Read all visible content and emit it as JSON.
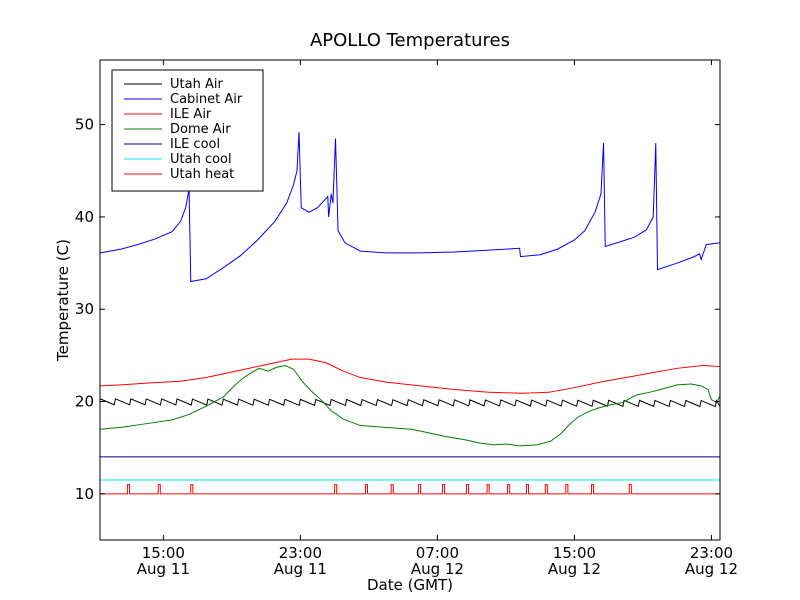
{
  "chart_data": {
    "type": "line",
    "title": "APOLLO Temperatures",
    "xlabel": "Date (GMT)",
    "ylabel": "Temperature (C)",
    "x_units": "hours since Aug 11 00:00 GMT",
    "xlim": [
      11.3,
      47.5
    ],
    "ylim": [
      5,
      57
    ],
    "yticks": [
      10,
      20,
      30,
      40,
      50
    ],
    "xticks": [
      {
        "x": 15,
        "line1": "15:00",
        "line2": "Aug 11"
      },
      {
        "x": 23,
        "line1": "23:00",
        "line2": "Aug 11"
      },
      {
        "x": 31,
        "line1": "07:00",
        "line2": "Aug 12"
      },
      {
        "x": 39,
        "line1": "15:00",
        "line2": "Aug 12"
      },
      {
        "x": 47,
        "line1": "23:00",
        "line2": "Aug 12"
      }
    ],
    "grid": false,
    "legend_position": "top-left",
    "series": [
      {
        "name": "Utah Air",
        "color": "#000000",
        "points": [
          [
            11.3,
            19.8
          ],
          [
            47.5,
            19.6
          ]
        ],
        "sawtooth": {
          "start": 11.3,
          "period": 0.9,
          "amplitude": 0.5,
          "spikes": []
        }
      },
      {
        "name": "Cabinet Air",
        "color": "#0000ff",
        "points": [
          [
            11.3,
            36.1
          ],
          [
            12.5,
            36.5
          ],
          [
            13.5,
            37.0
          ],
          [
            14.5,
            37.6
          ],
          [
            15.5,
            38.4
          ],
          [
            16,
            39.5
          ],
          [
            16.3,
            41
          ],
          [
            16.5,
            43
          ],
          [
            16.6,
            33
          ],
          [
            17.5,
            33.3
          ],
          [
            18.5,
            34.5
          ],
          [
            19.5,
            35.8
          ],
          [
            20.5,
            37.5
          ],
          [
            21.5,
            39.5
          ],
          [
            22.2,
            41.5
          ],
          [
            22.6,
            43.5
          ],
          [
            22.8,
            45
          ],
          [
            22.92,
            49.2
          ],
          [
            23.05,
            41
          ],
          [
            23.5,
            40.5
          ],
          [
            24,
            41
          ],
          [
            24.4,
            41.8
          ],
          [
            24.6,
            42.2
          ],
          [
            24.65,
            40.0
          ],
          [
            24.8,
            42.5
          ],
          [
            24.9,
            41.5
          ],
          [
            25.05,
            48.5
          ],
          [
            25.2,
            38.5
          ],
          [
            25.6,
            37.2
          ],
          [
            26.5,
            36.3
          ],
          [
            28,
            36.1
          ],
          [
            30,
            36.1
          ],
          [
            32,
            36.2
          ],
          [
            34,
            36.4
          ],
          [
            35.8,
            36.6
          ],
          [
            35.85,
            35.7
          ],
          [
            37,
            35.9
          ],
          [
            38,
            36.5
          ],
          [
            39,
            37.5
          ],
          [
            39.6,
            38.5
          ],
          [
            40.2,
            40.5
          ],
          [
            40.55,
            42.5
          ],
          [
            40.7,
            48.0
          ],
          [
            40.8,
            36.8
          ],
          [
            41.5,
            37.2
          ],
          [
            42.5,
            37.8
          ],
          [
            43.2,
            38.6
          ],
          [
            43.6,
            40
          ],
          [
            43.75,
            48.0
          ],
          [
            43.85,
            34.3
          ],
          [
            45,
            35
          ],
          [
            46,
            35.7
          ],
          [
            46.3,
            36
          ],
          [
            46.4,
            35.4
          ],
          [
            46.7,
            37.0
          ],
          [
            47.5,
            37.2
          ]
        ]
      },
      {
        "name": "ILE Air",
        "color": "#ff0000",
        "points": [
          [
            11.3,
            21.7
          ],
          [
            12.5,
            21.8
          ],
          [
            14,
            22
          ],
          [
            16,
            22.2
          ],
          [
            17.5,
            22.6
          ],
          [
            19,
            23.2
          ],
          [
            20.5,
            23.8
          ],
          [
            21.5,
            24.2
          ],
          [
            22.5,
            24.6
          ],
          [
            23.5,
            24.6
          ],
          [
            24.5,
            24.2
          ],
          [
            25.5,
            23.3
          ],
          [
            26.5,
            22.6
          ],
          [
            28,
            22.1
          ],
          [
            30,
            21.7
          ],
          [
            32,
            21.3
          ],
          [
            34,
            21
          ],
          [
            36,
            20.9
          ],
          [
            37.5,
            21
          ],
          [
            39,
            21.5
          ],
          [
            40.5,
            22.1
          ],
          [
            42,
            22.6
          ],
          [
            43.5,
            23.1
          ],
          [
            45,
            23.6
          ],
          [
            46.5,
            23.9
          ],
          [
            47.5,
            23.8
          ]
        ]
      },
      {
        "name": "Dome Air",
        "color": "#008000",
        "points": [
          [
            11.3,
            17
          ],
          [
            12.5,
            17.2
          ],
          [
            14,
            17.6
          ],
          [
            15.5,
            18
          ],
          [
            16.5,
            18.6
          ],
          [
            17.5,
            19.5
          ],
          [
            18.5,
            20.5
          ],
          [
            19.2,
            21.8
          ],
          [
            19.7,
            22.6
          ],
          [
            20.2,
            23.2
          ],
          [
            20.6,
            23.6
          ],
          [
            21.1,
            23.3
          ],
          [
            21.6,
            23.7
          ],
          [
            22.1,
            23.9
          ],
          [
            22.6,
            23.5
          ],
          [
            23.1,
            22.2
          ],
          [
            23.6,
            21.2
          ],
          [
            24.2,
            20.2
          ],
          [
            24.8,
            19.0
          ],
          [
            25.5,
            18.1
          ],
          [
            26.5,
            17.4
          ],
          [
            28,
            17.2
          ],
          [
            29.5,
            17.0
          ],
          [
            30.5,
            16.6
          ],
          [
            31.5,
            16.2
          ],
          [
            32.5,
            15.9
          ],
          [
            33.5,
            15.5
          ],
          [
            34.3,
            15.3
          ],
          [
            35,
            15.4
          ],
          [
            35.8,
            15.2
          ],
          [
            36.8,
            15.3
          ],
          [
            37.6,
            15.7
          ],
          [
            38.2,
            16.5
          ],
          [
            38.7,
            17.5
          ],
          [
            39.2,
            18.3
          ],
          [
            39.8,
            18.9
          ],
          [
            40.4,
            19.3
          ],
          [
            41,
            19.6
          ],
          [
            41.8,
            19.9
          ],
          [
            42.6,
            20.7
          ],
          [
            43.4,
            21.0
          ],
          [
            44.2,
            21.4
          ],
          [
            45.0,
            21.8
          ],
          [
            45.8,
            21.9
          ],
          [
            46.4,
            21.7
          ],
          [
            46.8,
            21.3
          ],
          [
            47.0,
            20.2
          ],
          [
            47.3,
            19.9
          ],
          [
            47.5,
            20.6
          ]
        ]
      },
      {
        "name": "ILE cool",
        "color": "#000080",
        "points": [
          [
            11.3,
            14
          ],
          [
            47.5,
            14
          ]
        ]
      },
      {
        "name": "Utah cool",
        "color": "#00eeee",
        "points": [
          [
            11.3,
            11.5
          ],
          [
            47.5,
            11.5
          ]
        ]
      },
      {
        "name": "Utah heat",
        "color": "#ff0000",
        "points": [
          [
            11.3,
            10
          ],
          [
            47.5,
            10
          ]
        ],
        "spikes": {
          "low": 10,
          "high": 11,
          "times": [
            12.9,
            14.7,
            16.6,
            25.0,
            26.8,
            28.3,
            29.9,
            31.3,
            32.7,
            33.9,
            35.1,
            36.2,
            37.3,
            38.5,
            40.0,
            42.2
          ]
        }
      }
    ]
  }
}
